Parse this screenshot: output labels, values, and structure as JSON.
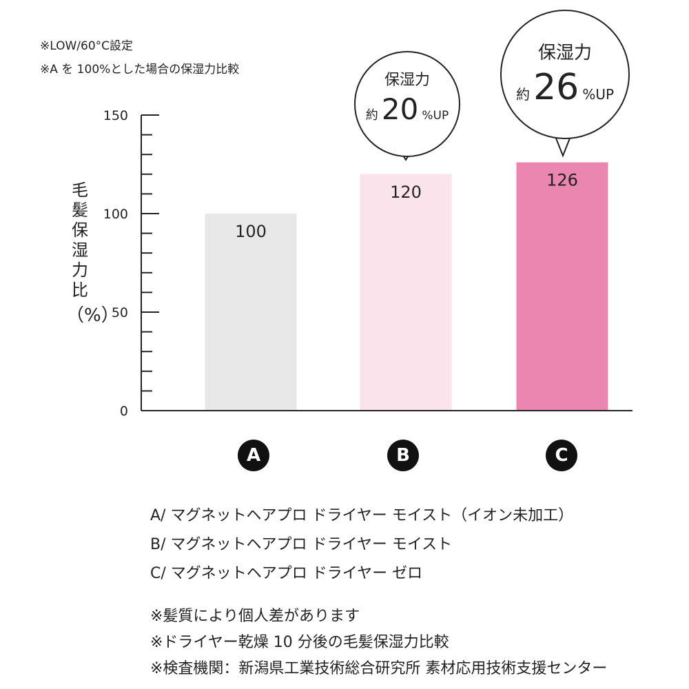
{
  "notes_top": [
    "※LOW/60°C設定",
    "※A を 100%とした場合の保湿力比較"
  ],
  "chart_data": {
    "type": "bar",
    "categories": [
      "A",
      "B",
      "C"
    ],
    "values": [
      100,
      120,
      126
    ],
    "data_labels": [
      "100",
      "120",
      "126"
    ],
    "colors": [
      "#e8e8e8",
      "#fbe3ec",
      "#ea86b0"
    ],
    "ylabel_chars": [
      "毛",
      "髪",
      "保",
      "湿",
      "力",
      "比"
    ],
    "ylabel_unit": "（%）",
    "yticks": [
      "0",
      "50",
      "100",
      "150"
    ],
    "ylim": [
      0,
      150
    ],
    "grid": false
  },
  "callouts": [
    {
      "category": "B",
      "title": "保湿力",
      "prefix": "約",
      "value": "20",
      "suffix": "%UP"
    },
    {
      "category": "C",
      "title": "保湿力",
      "prefix": "約",
      "value": "26",
      "suffix": "%UP"
    }
  ],
  "legend": [
    "A/ マグネットヘアプロ ドライヤー モイスト（イオン未加工）",
    "B/ マグネットヘアプロ ドライヤー モイスト",
    "C/ マグネットヘアプロ ドライヤー ゼロ"
  ],
  "footnotes": [
    "※髪質により個人差があります",
    "※ドライヤー乾燥 10 分後の毛髪保湿力比較",
    "※検査機関：新潟県工業技術総合研究所 素材応用技術支援センター"
  ]
}
